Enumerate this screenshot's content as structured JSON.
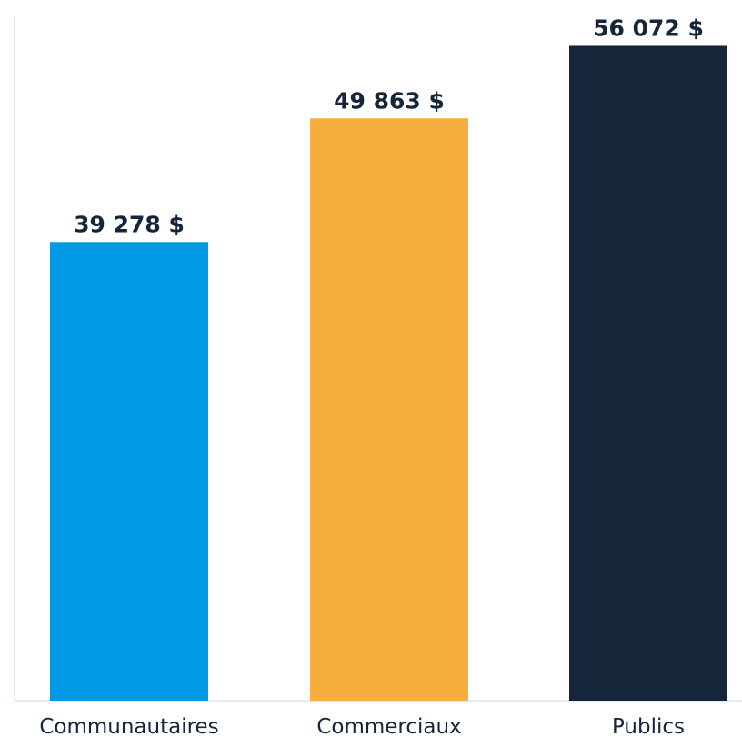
{
  "chart_data": {
    "type": "bar",
    "categories": [
      "Communautaires",
      "Commerciaux",
      "Publics"
    ],
    "values": [
      39278,
      49863,
      56072
    ],
    "value_labels": [
      "39 278 $",
      "49 863 $",
      "56 072 $"
    ],
    "colors": [
      "#0099e3",
      "#f7ae3e",
      "#15253a"
    ],
    "title": "",
    "xlabel": "",
    "ylabel": "",
    "ylim": [
      0,
      60000
    ],
    "grid": false,
    "axis_color": "#dde6ef"
  }
}
